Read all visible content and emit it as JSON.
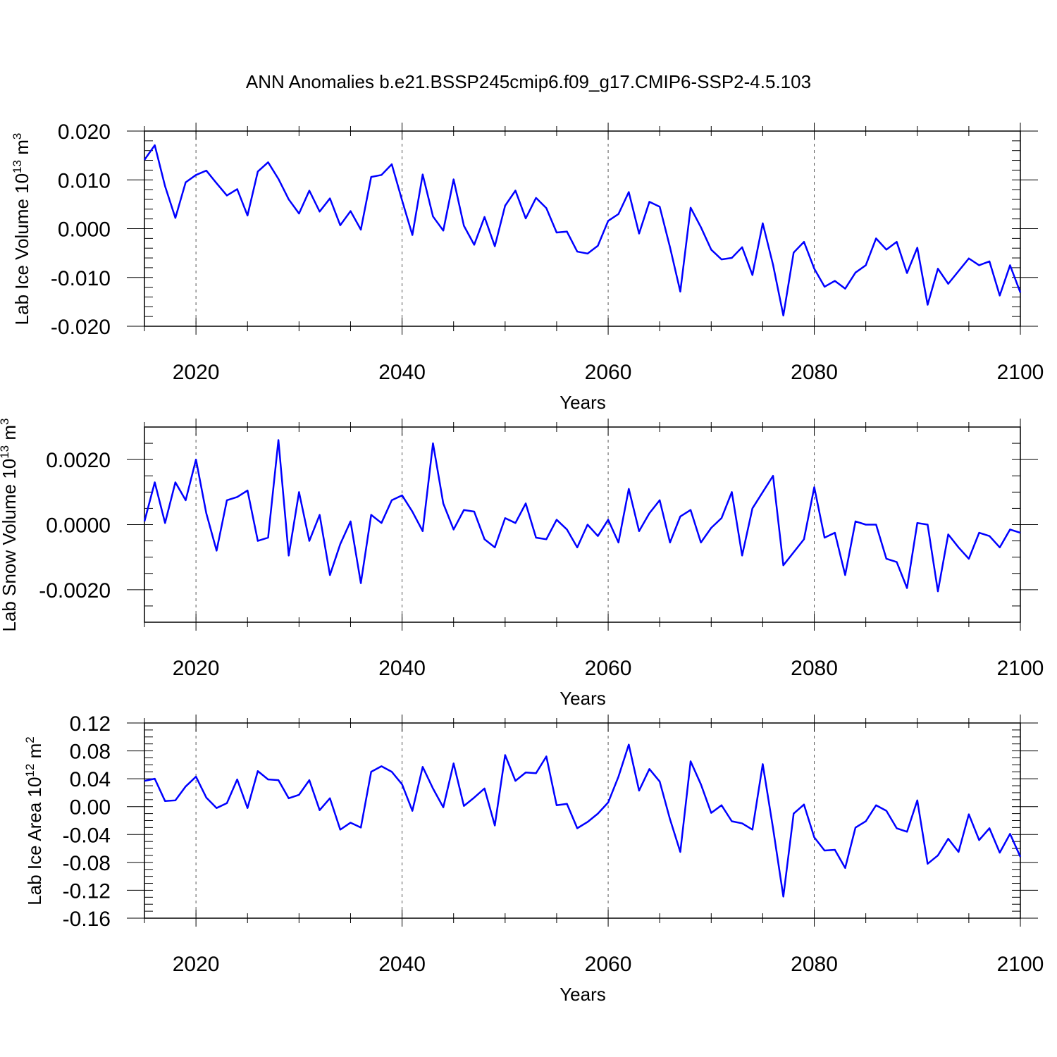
{
  "title": "ANN Anomalies b.e21.BSSP245cmip6.f09_g17.CMIP6-SSP2-4.5.103",
  "colors": {
    "series": "#0000ff",
    "axis": "#000000",
    "grid": "#555555"
  },
  "chart_data": [
    {
      "type": "line",
      "ylabel": {
        "main": "Lab Ice Volume 10",
        "exp": "13",
        "unit": " m",
        "unit_exp": "3"
      },
      "xlabel": "Years",
      "xlim": [
        2015,
        2100
      ],
      "ylim": [
        -0.02,
        0.02
      ],
      "xticks": [
        "2020",
        "2040",
        "2060",
        "2080",
        "2100"
      ],
      "yticks": [
        "-0.020",
        "-0.010",
        "0.000",
        "0.010",
        "0.020"
      ],
      "ytick_values": [
        -0.02,
        -0.01,
        0.0,
        0.01,
        0.02
      ],
      "y_minor_step": 0.002,
      "grid": "vertical dashed at major x ticks",
      "x": [
        2015,
        2016,
        2017,
        2018,
        2019,
        2020,
        2021,
        2022,
        2023,
        2024,
        2025,
        2026,
        2027,
        2028,
        2029,
        2030,
        2031,
        2032,
        2033,
        2034,
        2035,
        2036,
        2037,
        2038,
        2039,
        2040,
        2041,
        2042,
        2043,
        2044,
        2045,
        2046,
        2047,
        2048,
        2049,
        2050,
        2051,
        2052,
        2053,
        2054,
        2055,
        2056,
        2057,
        2058,
        2059,
        2060,
        2061,
        2062,
        2063,
        2064,
        2065,
        2066,
        2067,
        2068,
        2069,
        2070,
        2071,
        2072,
        2073,
        2074,
        2075,
        2076,
        2077,
        2078,
        2079,
        2080,
        2081,
        2082,
        2083,
        2084,
        2085,
        2086,
        2087,
        2088,
        2089,
        2090,
        2091,
        2092,
        2093,
        2094,
        2095,
        2096,
        2097,
        2098,
        2099,
        2100
      ],
      "series": [
        {
          "values": [
            0.0141,
            0.0171,
            0.0087,
            0.0022,
            0.0095,
            0.011,
            0.0119,
            0.0093,
            0.0068,
            0.0081,
            0.0027,
            0.0117,
            0.0136,
            0.0102,
            0.006,
            0.0031,
            0.0078,
            0.0035,
            0.0062,
            0.0007,
            0.0036,
            -0.0002,
            0.0106,
            0.011,
            0.0132,
            0.0058,
            -0.0013,
            0.0111,
            0.0025,
            -0.0004,
            0.0101,
            0.0006,
            -0.0033,
            0.0024,
            -0.0036,
            0.0047,
            0.0078,
            0.0021,
            0.0063,
            0.0042,
            -0.0008,
            -0.0006,
            -0.0047,
            -0.0051,
            -0.0035,
            0.0016,
            0.003,
            0.0075,
            -0.001,
            0.0055,
            0.0045,
            -0.0038,
            -0.0129,
            0.0043,
            0.0003,
            -0.0043,
            -0.0063,
            -0.006,
            -0.0038,
            -0.0095,
            0.0011,
            -0.0074,
            -0.0178,
            -0.0049,
            -0.0027,
            -0.0082,
            -0.0119,
            -0.0107,
            -0.0123,
            -0.009,
            -0.0075,
            -0.002,
            -0.0043,
            -0.0027,
            -0.0091,
            -0.0039,
            -0.0156,
            -0.0082,
            -0.0113,
            -0.0087,
            -0.0061,
            -0.0075,
            -0.0067,
            -0.0137,
            -0.0075,
            -0.0131
          ]
        }
      ]
    },
    {
      "type": "line",
      "ylabel": {
        "main": "Lab Snow Volume 10",
        "exp": "13",
        "unit": " m",
        "unit_exp": "3"
      },
      "xlabel": "Years",
      "xlim": [
        2015,
        2100
      ],
      "ylim": [
        -0.003,
        0.003
      ],
      "xticks": [
        "2020",
        "2040",
        "2060",
        "2080",
        "2100"
      ],
      "yticks": [
        "-0.0020",
        "0.0000",
        "0.0020"
      ],
      "ytick_values": [
        -0.002,
        0.0,
        0.002
      ],
      "y_minor_step": 0.0005,
      "grid": "vertical dashed at major x ticks",
      "x": [
        2015,
        2016,
        2017,
        2018,
        2019,
        2020,
        2021,
        2022,
        2023,
        2024,
        2025,
        2026,
        2027,
        2028,
        2029,
        2030,
        2031,
        2032,
        2033,
        2034,
        2035,
        2036,
        2037,
        2038,
        2039,
        2040,
        2041,
        2042,
        2043,
        2044,
        2045,
        2046,
        2047,
        2048,
        2049,
        2050,
        2051,
        2052,
        2053,
        2054,
        2055,
        2056,
        2057,
        2058,
        2059,
        2060,
        2061,
        2062,
        2063,
        2064,
        2065,
        2066,
        2067,
        2068,
        2069,
        2070,
        2071,
        2072,
        2073,
        2074,
        2075,
        2076,
        2077,
        2078,
        2079,
        2080,
        2081,
        2082,
        2083,
        2084,
        2085,
        2086,
        2087,
        2088,
        2089,
        2090,
        2091,
        2092,
        2093,
        2094,
        2095,
        2096,
        2097,
        2098,
        2099,
        2100
      ],
      "series": [
        {
          "values": [
            0.0001,
            0.0013,
            5e-05,
            0.0013,
            0.00075,
            0.002,
            0.00035,
            -0.0008,
            0.00075,
            0.00085,
            0.00105,
            -0.0005,
            -0.0004,
            0.0026,
            -0.00095,
            0.001,
            -0.0005,
            0.0003,
            -0.00155,
            -0.0006,
            0.0001,
            -0.0018,
            0.0003,
            5e-05,
            0.00075,
            0.0009,
            0.0004,
            -0.0002,
            0.0025,
            0.00065,
            -0.00015,
            0.00045,
            0.0004,
            -0.00045,
            -0.0007,
            0.0002,
            5e-05,
            0.00065,
            -0.0004,
            -0.00045,
            0.00015,
            -0.00015,
            -0.0007,
            0.0,
            -0.00035,
            0.00015,
            -0.00055,
            0.0011,
            -0.0002,
            0.00035,
            0.00075,
            -0.00055,
            0.00025,
            0.00045,
            -0.00055,
            -0.0001,
            0.0002,
            0.001,
            -0.00095,
            0.0005,
            0.001,
            0.0015,
            -0.00125,
            -0.00085,
            -0.00045,
            0.00115,
            -0.0004,
            -0.00025,
            -0.00155,
            0.0001,
            0.0,
            0.0,
            -0.00105,
            -0.00115,
            -0.00195,
            5e-05,
            0.0,
            -0.00205,
            -0.0003,
            -0.0007,
            -0.00105,
            -0.00025,
            -0.00035,
            -0.0007,
            -0.00015,
            -0.00025
          ]
        }
      ]
    },
    {
      "type": "line",
      "ylabel": {
        "main": "Lab Ice Area 10",
        "exp": "12",
        "unit": " m",
        "unit_exp": "2"
      },
      "xlabel": "Years",
      "xlim": [
        2015,
        2100
      ],
      "ylim": [
        -0.16,
        0.12
      ],
      "xticks": [
        "2020",
        "2040",
        "2060",
        "2080",
        "2100"
      ],
      "yticks": [
        "-0.16",
        "-0.12",
        "-0.08",
        "-0.04",
        "0.00",
        "0.04",
        "0.08",
        "0.12"
      ],
      "ytick_values": [
        -0.16,
        -0.12,
        -0.08,
        -0.04,
        0.0,
        0.04,
        0.08,
        0.12
      ],
      "y_minor_step": 0.01,
      "grid": "vertical dashed at major x ticks",
      "x": [
        2015,
        2016,
        2017,
        2018,
        2019,
        2020,
        2021,
        2022,
        2023,
        2024,
        2025,
        2026,
        2027,
        2028,
        2029,
        2030,
        2031,
        2032,
        2033,
        2034,
        2035,
        2036,
        2037,
        2038,
        2039,
        2040,
        2041,
        2042,
        2043,
        2044,
        2045,
        2046,
        2047,
        2048,
        2049,
        2050,
        2051,
        2052,
        2053,
        2054,
        2055,
        2056,
        2057,
        2058,
        2059,
        2060,
        2061,
        2062,
        2063,
        2064,
        2065,
        2066,
        2067,
        2068,
        2069,
        2070,
        2071,
        2072,
        2073,
        2074,
        2075,
        2076,
        2077,
        2078,
        2079,
        2080,
        2081,
        2082,
        2083,
        2084,
        2085,
        2086,
        2087,
        2088,
        2089,
        2090,
        2091,
        2092,
        2093,
        2094,
        2095,
        2096,
        2097,
        2098,
        2099,
        2100
      ],
      "series": [
        {
          "values": [
            0.037,
            0.04,
            0.008,
            0.009,
            0.029,
            0.043,
            0.013,
            -0.002,
            0.005,
            0.039,
            -0.002,
            0.051,
            0.039,
            0.038,
            0.012,
            0.017,
            0.038,
            -0.005,
            0.012,
            -0.033,
            -0.023,
            -0.03,
            0.05,
            0.058,
            0.05,
            0.032,
            -0.006,
            0.057,
            0.026,
            -0.001,
            0.062,
            0.001,
            0.013,
            0.026,
            -0.027,
            0.074,
            0.037,
            0.049,
            0.048,
            0.072,
            0.002,
            0.004,
            -0.031,
            -0.022,
            -0.01,
            0.006,
            0.043,
            0.089,
            0.023,
            0.054,
            0.036,
            -0.018,
            -0.065,
            0.065,
            0.032,
            -0.009,
            0.002,
            -0.021,
            -0.024,
            -0.033,
            0.061,
            -0.031,
            -0.129,
            -0.01,
            0.003,
            -0.044,
            -0.063,
            -0.062,
            -0.088,
            -0.03,
            -0.021,
            0.002,
            -0.006,
            -0.031,
            -0.036,
            0.009,
            -0.082,
            -0.07,
            -0.046,
            -0.065,
            -0.011,
            -0.048,
            -0.031,
            -0.066,
            -0.039,
            -0.072
          ]
        }
      ]
    }
  ]
}
